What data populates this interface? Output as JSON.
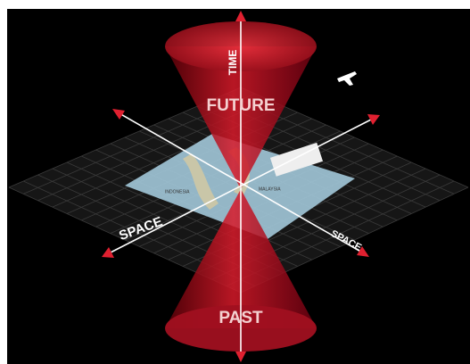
{
  "labels": {
    "time": "TIME",
    "future": "FUTURE",
    "past": "PAST",
    "space_left": "SPACE",
    "space_right": "SPACE"
  },
  "map": {
    "labels": [
      "INDONESIA",
      "MALAYSIA"
    ]
  }
}
